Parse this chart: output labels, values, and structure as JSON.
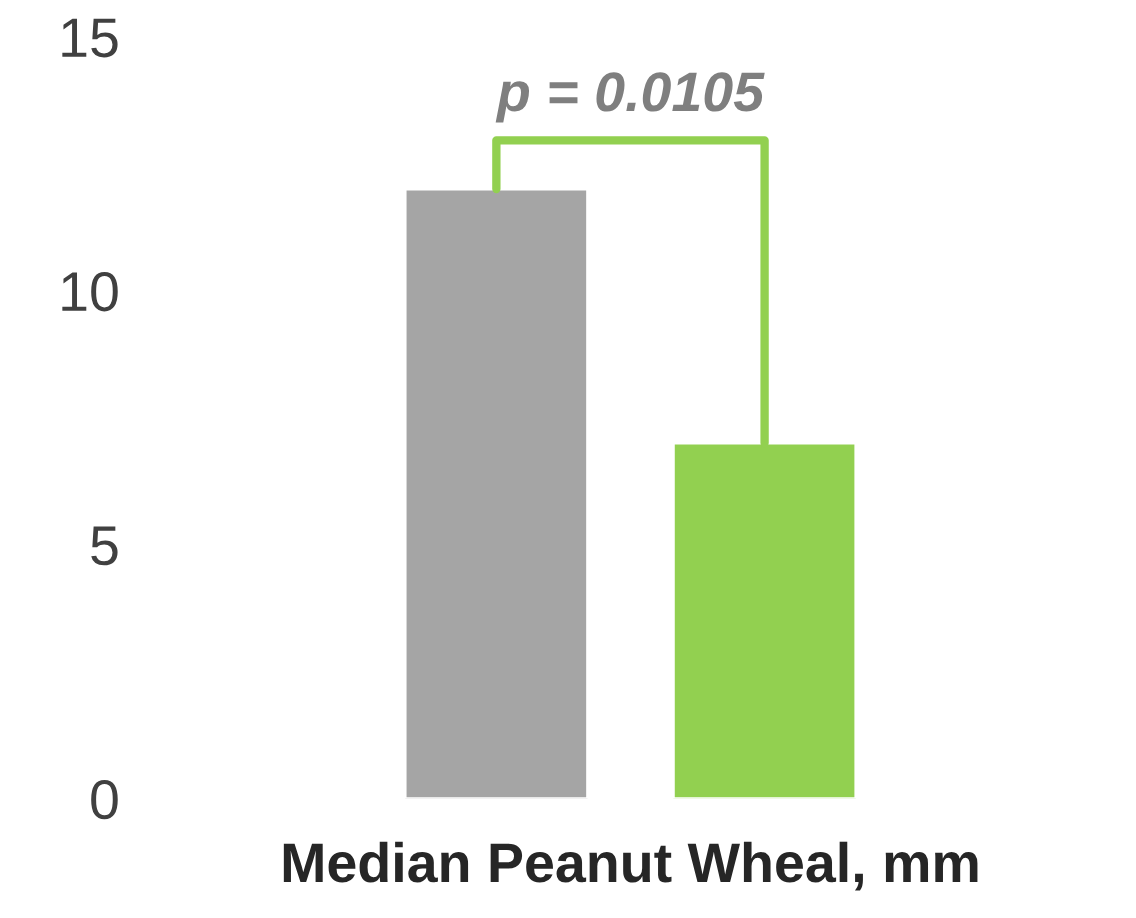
{
  "chart_data": {
    "type": "bar",
    "xlabel": "Median Peanut Wheal, mm",
    "categories": [
      null,
      null
    ],
    "values": [
      12,
      7
    ],
    "colors": [
      "#a5a5a5",
      "#92d050"
    ],
    "ylim": [
      0,
      15
    ],
    "yticks": [
      0,
      5,
      10,
      15
    ],
    "annotations": [
      "p = 0.0105"
    ]
  }
}
